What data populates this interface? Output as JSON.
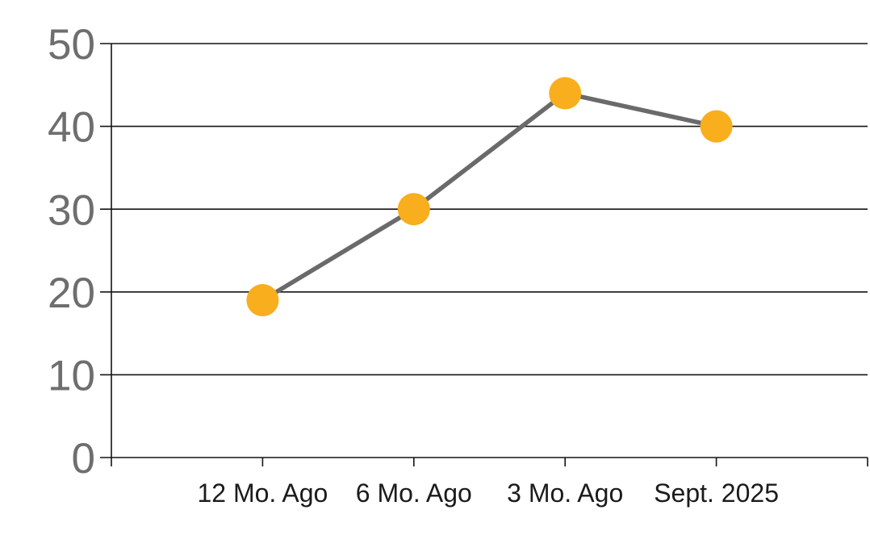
{
  "chart_data": {
    "type": "line",
    "title": "",
    "xlabel": "",
    "ylabel": "",
    "categories": [
      "12 Mo. Ago",
      "6 Mo. Ago",
      "3 Mo. Ago",
      "Sept. 2025"
    ],
    "series": [
      {
        "name": "series-1",
        "values": [
          19,
          30,
          44,
          40
        ]
      }
    ],
    "ylim": [
      0,
      50
    ],
    "yticks": [
      0,
      10,
      20,
      30,
      40,
      50
    ],
    "grid": true,
    "legend_position": "none",
    "colors": {
      "marker": "#F8AE1D",
      "line": "#6A6A6A",
      "grid": "#141414",
      "y_tick_label": "#6E6E6E",
      "x_tick_label": "#1B1B1B",
      "background": "#FFFFFF"
    }
  }
}
